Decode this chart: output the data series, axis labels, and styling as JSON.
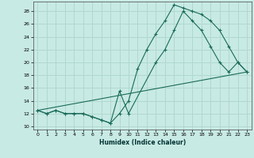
{
  "xlabel": "Humidex (Indice chaleur)",
  "bg_color": "#c8eae4",
  "grid_color": "#b0d8d0",
  "line_color": "#1a6b5a",
  "xlim": [
    -0.5,
    23.5
  ],
  "ylim": [
    9.5,
    29.5
  ],
  "xticks": [
    0,
    1,
    2,
    3,
    4,
    5,
    6,
    7,
    8,
    9,
    10,
    11,
    12,
    13,
    14,
    15,
    16,
    17,
    18,
    19,
    20,
    21,
    22,
    23
  ],
  "yticks": [
    10,
    12,
    14,
    16,
    18,
    20,
    22,
    24,
    26,
    28
  ],
  "line1_x": [
    0,
    1,
    2,
    3,
    4,
    5,
    6,
    7,
    8,
    9,
    10,
    11,
    12,
    13,
    14,
    15,
    16,
    17,
    18,
    19,
    20,
    21,
    22,
    23
  ],
  "line1_y": [
    12.5,
    12.0,
    12.5,
    12.0,
    12.0,
    12.0,
    11.5,
    11.0,
    10.5,
    12.0,
    14.0,
    19.0,
    22.0,
    24.5,
    26.5,
    29.0,
    28.5,
    28.0,
    27.5,
    26.5,
    25.0,
    22.5,
    20.0,
    18.5
  ],
  "line2_x": [
    0,
    1,
    2,
    3,
    4,
    5,
    6,
    7,
    8,
    9,
    10,
    13,
    14,
    15,
    16,
    17,
    18,
    19,
    20,
    21,
    22,
    23
  ],
  "line2_y": [
    12.5,
    12.0,
    12.5,
    12.0,
    12.0,
    12.0,
    11.5,
    11.0,
    10.5,
    15.5,
    12.0,
    20.0,
    22.0,
    25.0,
    28.0,
    26.5,
    25.0,
    22.5,
    20.0,
    18.5,
    20.0,
    18.5
  ],
  "line3_x": [
    0,
    23
  ],
  "line3_y": [
    12.5,
    18.5
  ]
}
